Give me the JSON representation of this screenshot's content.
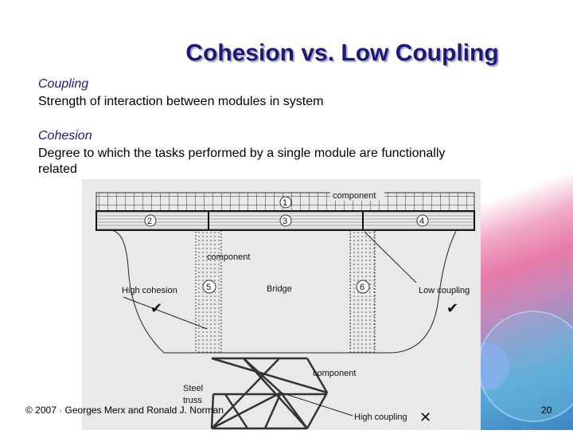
{
  "title": "Cohesion vs. Low Coupling",
  "coupling": {
    "term": "Coupling",
    "definition": "Strength of interaction between modules in system"
  },
  "cohesion": {
    "term": "Cohesion",
    "definition_line1": "Degree to which the tasks performed by a single module are functionally",
    "definition_line2": "related"
  },
  "figure": {
    "labels": {
      "component_deck": "component",
      "component_pier": "component",
      "component_truss": "component",
      "high_cohesion": "High cohesion",
      "bridge": "Bridge",
      "low_coupling": "Low coupling",
      "steel": "Steel",
      "truss": "truss",
      "high_coupling": "High coupling"
    },
    "numbers": [
      "1",
      "2",
      "3",
      "4",
      "5",
      "6"
    ],
    "marks": {
      "check": "✔",
      "cross": "✕"
    }
  },
  "footer": {
    "copyright": "© 2007 · Georges Merx and Ronald J. Norman",
    "page": "20"
  },
  "colors": {
    "title": "#1b1b72",
    "figure_bg": "#e9e9e9"
  }
}
